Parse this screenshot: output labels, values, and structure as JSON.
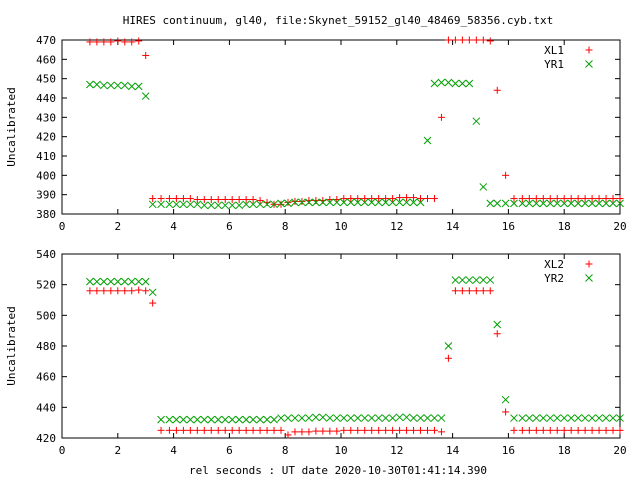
{
  "title": "HIRES continuum, gl40, file:Skynet_59152_gl40_48469_58356.cyb.txt",
  "xlabel": "rel seconds : UT date 2020-10-30T01:41:14.390",
  "colors": {
    "red": "#ff0000",
    "green": "#00a000"
  },
  "chart_data": [
    {
      "type": "scatter",
      "ylabel": "Uncalibrated",
      "xlim": [
        0,
        20
      ],
      "ylim": [
        380,
        470
      ],
      "xticks": [
        "0",
        "2",
        "4",
        "6",
        "8",
        "10",
        "12",
        "14",
        "16",
        "18",
        "20"
      ],
      "yticks": [
        "380",
        "390",
        "400",
        "410",
        "420",
        "430",
        "440",
        "450",
        "460",
        "470"
      ],
      "legend_position": "top-right",
      "series": [
        {
          "name": "XL1",
          "marker": "plus",
          "color": "#ff0000",
          "x": [
            1.0,
            1.25,
            1.5,
            1.75,
            2.0,
            2.25,
            2.5,
            2.75,
            3.0,
            3.25,
            3.55,
            3.85,
            4.1,
            4.35,
            4.6,
            4.85,
            5.1,
            5.35,
            5.6,
            5.85,
            6.1,
            6.35,
            6.6,
            6.85,
            7.1,
            7.35,
            7.6,
            7.85,
            8.1,
            8.35,
            8.6,
            8.85,
            9.1,
            9.35,
            9.6,
            9.85,
            10.1,
            10.35,
            10.6,
            10.85,
            11.1,
            11.35,
            11.6,
            11.85,
            12.1,
            12.35,
            12.6,
            12.85,
            13.1,
            13.35,
            13.6,
            13.85,
            14.1,
            14.35,
            14.6,
            14.85,
            15.1,
            15.35,
            15.6,
            15.9,
            16.2,
            16.5,
            16.75,
            17.0,
            17.25,
            17.5,
            17.75,
            18.0,
            18.25,
            18.5,
            18.75,
            19.0,
            19.25,
            19.5,
            19.75,
            20.0
          ],
          "y": [
            469,
            469,
            469,
            469,
            469.5,
            469,
            469,
            469.5,
            462,
            388,
            388,
            388,
            388,
            388,
            388,
            387.5,
            387.5,
            387.5,
            387.5,
            387.5,
            387.5,
            387.5,
            387.5,
            387.5,
            387,
            386,
            385,
            385,
            386,
            386.5,
            386.5,
            387,
            387,
            387,
            387.5,
            387.5,
            388,
            388,
            388,
            388,
            388,
            388,
            388,
            388,
            388.5,
            388.5,
            388.5,
            388,
            388,
            388,
            430,
            470,
            470,
            470,
            470,
            470,
            470,
            469.5,
            444,
            400,
            388,
            388,
            388,
            388,
            388,
            388,
            388,
            388,
            388,
            388,
            388,
            388,
            388,
            388,
            388,
            388
          ]
        },
        {
          "name": "YR1",
          "marker": "cross",
          "color": "#00a000",
          "x": [
            1.0,
            1.25,
            1.5,
            1.75,
            2.0,
            2.25,
            2.5,
            2.75,
            3.0,
            3.25,
            3.55,
            3.85,
            4.1,
            4.35,
            4.6,
            4.85,
            5.1,
            5.35,
            5.6,
            5.85,
            6.1,
            6.35,
            6.6,
            6.85,
            7.1,
            7.35,
            7.6,
            7.85,
            8.1,
            8.35,
            8.6,
            8.85,
            9.1,
            9.35,
            9.6,
            9.85,
            10.1,
            10.35,
            10.6,
            10.85,
            11.1,
            11.35,
            11.6,
            11.85,
            12.1,
            12.35,
            12.6,
            12.85,
            13.1,
            13.35,
            13.6,
            13.85,
            14.1,
            14.35,
            14.6,
            14.85,
            15.1,
            15.35,
            15.6,
            15.9,
            16.2,
            16.5,
            16.75,
            17.0,
            17.25,
            17.5,
            17.75,
            18.0,
            18.25,
            18.5,
            18.75,
            19.0,
            19.25,
            19.5,
            19.75,
            20.0
          ],
          "y": [
            447,
            447,
            446.5,
            446.5,
            446.5,
            446.5,
            446,
            446,
            441,
            385,
            385,
            385,
            385,
            385,
            385,
            385,
            384.5,
            384.5,
            384.5,
            384.5,
            384.5,
            384.5,
            385,
            385,
            385,
            385,
            385,
            385.5,
            385.5,
            386,
            386,
            386,
            386,
            386,
            386,
            386,
            386,
            386,
            386,
            386,
            386,
            386,
            386,
            386,
            386,
            386,
            386,
            386,
            418,
            447.5,
            448,
            448,
            447.5,
            447.5,
            447.5,
            428,
            394,
            385.5,
            385.5,
            385.5,
            385.5,
            385.5,
            385.5,
            385.5,
            385.5,
            385.5,
            385.5,
            385.5,
            385.5,
            385.5,
            385.5,
            385.5,
            385.5,
            385.5,
            385.5,
            385.5
          ]
        }
      ]
    },
    {
      "type": "scatter",
      "ylabel": "Uncalibrated",
      "xlim": [
        0,
        20
      ],
      "ylim": [
        420,
        540
      ],
      "xticks": [
        "0",
        "2",
        "4",
        "6",
        "8",
        "10",
        "12",
        "14",
        "16",
        "18",
        "20"
      ],
      "yticks": [
        "420",
        "440",
        "460",
        "480",
        "500",
        "520",
        "540"
      ],
      "legend_position": "top-right",
      "series": [
        {
          "name": "XL2",
          "marker": "plus",
          "color": "#ff0000",
          "x": [
            1.0,
            1.25,
            1.5,
            1.75,
            2.0,
            2.25,
            2.5,
            2.75,
            3.0,
            3.25,
            3.55,
            3.85,
            4.1,
            4.35,
            4.6,
            4.85,
            5.1,
            5.35,
            5.6,
            5.85,
            6.1,
            6.35,
            6.6,
            6.85,
            7.1,
            7.35,
            7.6,
            7.85,
            8.1,
            8.35,
            8.6,
            8.85,
            9.1,
            9.35,
            9.6,
            9.85,
            10.1,
            10.35,
            10.6,
            10.85,
            11.1,
            11.35,
            11.6,
            11.85,
            12.1,
            12.35,
            12.6,
            12.85,
            13.1,
            13.35,
            13.6,
            13.85,
            14.1,
            14.35,
            14.6,
            14.85,
            15.1,
            15.35,
            15.6,
            15.9,
            16.2,
            16.5,
            16.75,
            17.0,
            17.25,
            17.5,
            17.75,
            18.0,
            18.25,
            18.5,
            18.75,
            19.0,
            19.25,
            19.5,
            19.75,
            20.0
          ],
          "y": [
            516,
            516,
            516,
            516,
            516,
            516,
            516,
            516.5,
            516,
            508,
            425,
            425,
            425,
            425,
            425,
            425,
            425,
            425,
            425,
            425,
            425,
            425,
            425,
            425,
            425,
            425,
            425,
            425,
            422,
            424,
            424,
            424,
            424.5,
            424.5,
            424.5,
            424.5,
            425,
            425,
            425,
            425,
            425,
            425,
            425,
            425,
            425,
            425,
            425,
            425,
            425,
            425,
            424,
            472,
            516,
            516,
            516,
            516,
            516,
            516,
            488,
            437,
            425,
            425,
            425,
            425,
            425,
            425,
            425,
            425,
            425,
            425,
            425,
            425,
            425,
            425,
            425,
            425
          ]
        },
        {
          "name": "YR2",
          "marker": "cross",
          "color": "#00a000",
          "x": [
            1.0,
            1.25,
            1.5,
            1.75,
            2.0,
            2.25,
            2.5,
            2.75,
            3.0,
            3.25,
            3.55,
            3.85,
            4.1,
            4.35,
            4.6,
            4.85,
            5.1,
            5.35,
            5.6,
            5.85,
            6.1,
            6.35,
            6.6,
            6.85,
            7.1,
            7.35,
            7.6,
            7.85,
            8.1,
            8.35,
            8.6,
            8.85,
            9.1,
            9.35,
            9.6,
            9.85,
            10.1,
            10.35,
            10.6,
            10.85,
            11.1,
            11.35,
            11.6,
            11.85,
            12.1,
            12.35,
            12.6,
            12.85,
            13.1,
            13.35,
            13.6,
            13.85,
            14.1,
            14.35,
            14.6,
            14.85,
            15.1,
            15.35,
            15.6,
            15.9,
            16.2,
            16.5,
            16.75,
            17.0,
            17.25,
            17.5,
            17.75,
            18.0,
            18.25,
            18.5,
            18.75,
            19.0,
            19.25,
            19.5,
            19.75,
            20.0
          ],
          "y": [
            522,
            522,
            522,
            522,
            522,
            522,
            522,
            522,
            522,
            515,
            432,
            432,
            432,
            432,
            432,
            432,
            432,
            432,
            432,
            432,
            432,
            432,
            432,
            432,
            432,
            432,
            432,
            433,
            433,
            433,
            433,
            433,
            433.5,
            433.5,
            433,
            433,
            433,
            433,
            433,
            433,
            433,
            433,
            433,
            433,
            433.5,
            433.5,
            433,
            433,
            433,
            433,
            433,
            480,
            523,
            523,
            523,
            523,
            523,
            523,
            494,
            445,
            433,
            433,
            433,
            433,
            433,
            433,
            433,
            433,
            433,
            433,
            433,
            433,
            433,
            433,
            433,
            433
          ]
        }
      ]
    }
  ]
}
